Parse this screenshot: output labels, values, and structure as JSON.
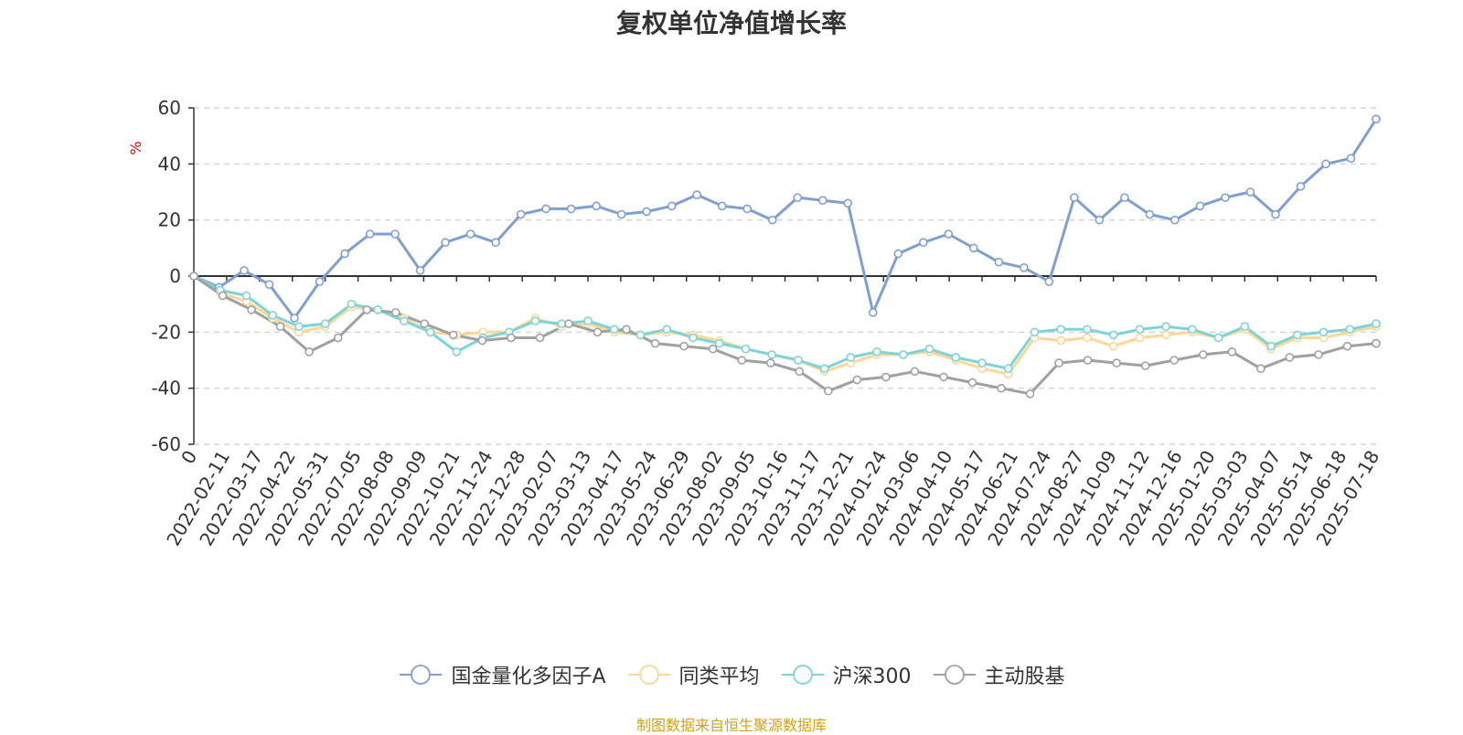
{
  "source_note": "制图数据来自恒生聚源数据库",
  "chart_data": {
    "type": "line",
    "title": "复权单位净值增长率",
    "y_unit": "%",
    "ylim": [
      -60,
      60
    ],
    "y_ticks": [
      60,
      40,
      20,
      0,
      -20,
      -40,
      -60
    ],
    "x_tick_labels": [
      "0",
      "2022-02-11",
      "2022-03-17",
      "2022-04-22",
      "2022-05-31",
      "2022-07-05",
      "2022-08-08",
      "2022-09-09",
      "2022-10-21",
      "2022-11-24",
      "2022-12-28",
      "2023-02-07",
      "2023-03-13",
      "2023-04-17",
      "2023-05-24",
      "2023-06-29",
      "2023-08-02",
      "2023-09-05",
      "2023-10-16",
      "2023-11-17",
      "2023-12-21",
      "2024-01-24",
      "2024-03-06",
      "2024-04-10",
      "2024-05-17",
      "2024-06-21",
      "2024-07-24",
      "2024-08-27",
      "2024-10-09",
      "2024-11-12",
      "2024-12-16",
      "2025-01-20",
      "2025-03-03",
      "2025-04-07",
      "2025-05-14",
      "2025-06-18",
      "2025-07-18"
    ],
    "grid": true,
    "legend_position": "bottom",
    "series": [
      {
        "name": "国金量化多因子A",
        "color": "#7f9fd4",
        "values": [
          0,
          -4,
          2,
          -3,
          -15,
          -2,
          8,
          15,
          15,
          2,
          12,
          15,
          12,
          22,
          24,
          24,
          25,
          22,
          23,
          25,
          29,
          25,
          24,
          20,
          28,
          27,
          26,
          -13,
          8,
          12,
          15,
          10,
          5,
          3,
          -2,
          28,
          20,
          28,
          22,
          20,
          25,
          28,
          30,
          22,
          32,
          40,
          42,
          56
        ]
      },
      {
        "name": "同类平均",
        "color": "#fcd795",
        "values": [
          0,
          -6,
          -9,
          -15,
          -20,
          -18,
          -11,
          -12,
          -15,
          -20,
          -21,
          -20,
          -20,
          -15,
          -18,
          -17,
          -20,
          -21,
          -20,
          -21,
          -23,
          -26,
          -28,
          -30,
          -34,
          -31,
          -28,
          -28,
          -27,
          -30,
          -33,
          -35,
          -22,
          -23,
          -22,
          -25,
          -22,
          -21,
          -20,
          -22,
          -19,
          -26,
          -22,
          -22,
          -20,
          -18
        ]
      },
      {
        "name": "沪深300",
        "color": "#7ed3d7",
        "values": [
          0,
          -5,
          -7,
          -14,
          -18,
          -17,
          -10,
          -12,
          -16,
          -20,
          -27,
          -22,
          -20,
          -16,
          -17,
          -16,
          -19,
          -21,
          -19,
          -22,
          -24,
          -26,
          -28,
          -30,
          -33,
          -29,
          -27,
          -28,
          -26,
          -29,
          -31,
          -33,
          -20,
          -19,
          -19,
          -21,
          -19,
          -18,
          -19,
          -22,
          -18,
          -25,
          -21,
          -20,
          -19,
          -17
        ]
      },
      {
        "name": "主动股基",
        "color": "#a0a0a0",
        "values": [
          0,
          -7,
          -12,
          -18,
          -27,
          -22,
          -12,
          -13,
          -17,
          -21,
          -23,
          -22,
          -22,
          -17,
          -20,
          -19,
          -24,
          -25,
          -26,
          -30,
          -31,
          -34,
          -41,
          -37,
          -36,
          -34,
          -36,
          -38,
          -40,
          -42,
          -31,
          -30,
          -31,
          -32,
          -30,
          -28,
          -27,
          -33,
          -29,
          -28,
          -25,
          -24
        ]
      }
    ]
  }
}
